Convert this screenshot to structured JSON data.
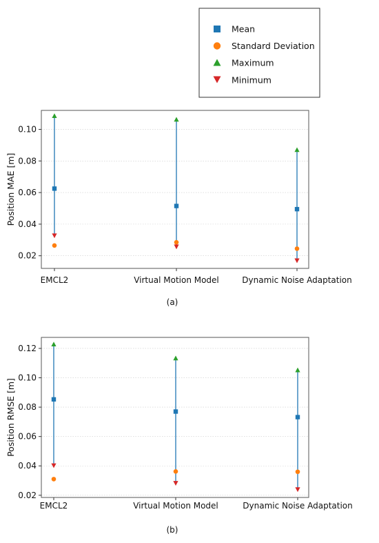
{
  "legend": {
    "entries": [
      {
        "label": "Mean",
        "marker": "square",
        "color": "#1f77b4"
      },
      {
        "label": "Standard Deviation",
        "marker": "circle",
        "color": "#ff7f0e"
      },
      {
        "label": "Maximum",
        "marker": "triangle-up",
        "color": "#2ca02c"
      },
      {
        "label": "Minimum",
        "marker": "triangle-down",
        "color": "#d62728"
      }
    ]
  },
  "chart_data": [
    {
      "type": "scatter",
      "caption": "(a)",
      "ylabel": "Position MAE [m]",
      "categories": [
        "EMCL2",
        "Virtual Motion Model",
        "Dynamic Noise Adaptation"
      ],
      "ylim": [
        0.012,
        0.112
      ],
      "yticks": [
        0.02,
        0.04,
        0.06,
        0.08,
        0.1
      ],
      "ytick_labels": [
        "0.02",
        "0.04",
        "0.06",
        "0.08",
        "0.10"
      ],
      "grid": true,
      "series": [
        {
          "name": "Mean",
          "values": [
            0.0625,
            0.0515,
            0.0495
          ]
        },
        {
          "name": "Standard Deviation",
          "values": [
            0.0265,
            0.0285,
            0.0245
          ]
        },
        {
          "name": "Maximum",
          "values": [
            0.1085,
            0.1062,
            0.087
          ]
        },
        {
          "name": "Minimum",
          "values": [
            0.0328,
            0.0258,
            0.017
          ]
        }
      ]
    },
    {
      "type": "scatter",
      "caption": "(b)",
      "ylabel": "Position RMSE [m]",
      "categories": [
        "EMCL2",
        "Virtual Motion Model",
        "Dynamic Noise Adaptation"
      ],
      "ylim": [
        0.0185,
        0.1275
      ],
      "yticks": [
        0.02,
        0.04,
        0.06,
        0.08,
        0.1,
        0.12
      ],
      "ytick_labels": [
        "0.02",
        "0.04",
        "0.06",
        "0.08",
        "0.10",
        "0.12"
      ],
      "grid": true,
      "series": [
        {
          "name": "Mean",
          "values": [
            0.0853,
            0.077,
            0.0732
          ]
        },
        {
          "name": "Standard Deviation",
          "values": [
            0.031,
            0.0362,
            0.036
          ]
        },
        {
          "name": "Maximum",
          "values": [
            0.1228,
            0.1133,
            0.1052
          ]
        },
        {
          "name": "Minimum",
          "values": [
            0.0403,
            0.0283,
            0.024
          ]
        }
      ]
    }
  ]
}
